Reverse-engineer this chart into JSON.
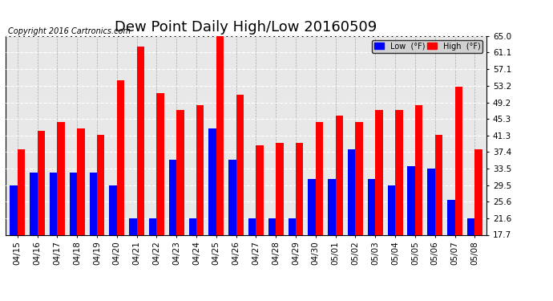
{
  "title": "Dew Point Daily High/Low 20160509",
  "copyright": "Copyright 2016 Cartronics.com",
  "legend_low_label": "Low  (°F)",
  "legend_high_label": "High  (°F)",
  "legend_low_color": "#0000ff",
  "legend_high_color": "#ff0000",
  "bar_width": 0.38,
  "background_color": "#ffffff",
  "grid_color": "#aaaaaa",
  "dates": [
    "04/15",
    "04/16",
    "04/17",
    "04/18",
    "04/19",
    "04/20",
    "04/21",
    "04/22",
    "04/23",
    "04/24",
    "04/25",
    "04/26",
    "04/27",
    "04/28",
    "04/29",
    "04/30",
    "05/01",
    "05/02",
    "05/03",
    "05/04",
    "05/05",
    "05/06",
    "05/07",
    "05/08"
  ],
  "low_values": [
    29.5,
    32.5,
    32.5,
    32.5,
    32.5,
    29.5,
    21.6,
    21.6,
    35.5,
    21.6,
    43.0,
    35.5,
    21.6,
    21.6,
    21.6,
    31.0,
    31.0,
    38.0,
    31.0,
    29.5,
    34.0,
    33.5,
    26.0,
    21.6
  ],
  "high_values": [
    38.0,
    42.5,
    44.5,
    43.0,
    41.5,
    54.5,
    62.5,
    51.5,
    47.5,
    48.5,
    65.0,
    51.0,
    39.0,
    39.5,
    39.5,
    44.5,
    46.0,
    44.5,
    47.5,
    47.5,
    48.5,
    41.5,
    53.0,
    38.0
  ],
  "ymin": 17.7,
  "ymax": 65.0,
  "yticks": [
    17.7,
    21.6,
    25.6,
    29.5,
    33.5,
    37.4,
    41.3,
    45.3,
    49.2,
    53.2,
    57.1,
    61.1,
    65.0
  ],
  "title_fontsize": 13,
  "axis_fontsize": 7.5,
  "copyright_fontsize": 7,
  "bar_color_low": "#0000ff",
  "bar_color_high": "#ff0000"
}
